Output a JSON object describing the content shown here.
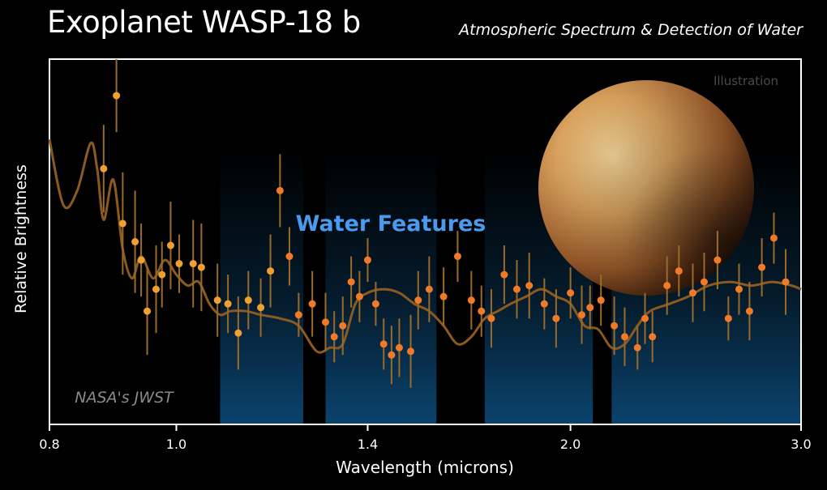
{
  "title": "Exoplanet WASP-18 b",
  "subtitle": "Atmospheric Spectrum & Detection of Water",
  "annotations": {
    "water": "Water Features",
    "illustration": "Illustration",
    "credit": "NASA's JWST"
  },
  "colors": {
    "points": "#f07a28",
    "model": "#8a5a20",
    "water_band": "#0d4f80",
    "water_text": "#4a9bf0",
    "planet": "#c68a45"
  },
  "chart_data": {
    "type": "scatter",
    "title": "Exoplanet WASP-18 b",
    "subtitle": "Atmospheric Spectrum & Detection of Water",
    "xlabel": "Wavelength (microns)",
    "ylabel": "Relative Brightness",
    "x_scale": "log",
    "xlim": [
      0.8,
      3.0
    ],
    "ylim": [
      0,
      100
    ],
    "x_ticks": [
      0.8,
      1.0,
      1.4,
      2.0,
      3.0
    ],
    "x_tick_labels": [
      "0.8",
      "1.0",
      "1.4",
      "2.0",
      "3.0"
    ],
    "y_ticks_shown": false,
    "water_bands": [
      [
        1.08,
        1.25
      ],
      [
        1.3,
        1.58
      ],
      [
        1.72,
        2.08
      ],
      [
        2.15,
        3.0
      ]
    ],
    "series": [
      {
        "kind": "observations",
        "x": [
          0.88,
          0.9,
          0.91,
          0.93,
          0.94,
          0.95,
          0.965,
          0.975,
          0.99,
          1.005,
          1.03,
          1.045,
          1.075,
          1.095,
          1.115,
          1.135,
          1.16,
          1.18,
          1.2,
          1.22,
          1.24,
          1.27,
          1.3,
          1.32,
          1.34,
          1.36,
          1.38,
          1.4,
          1.42,
          1.44,
          1.46,
          1.48,
          1.51,
          1.53,
          1.56,
          1.6,
          1.64,
          1.68,
          1.71,
          1.74,
          1.78,
          1.82,
          1.86,
          1.91,
          1.95,
          2.0,
          2.04,
          2.07,
          2.11,
          2.16,
          2.2,
          2.25,
          2.28,
          2.31,
          2.37,
          2.42,
          2.48,
          2.53,
          2.59,
          2.64,
          2.69,
          2.74,
          2.8,
          2.86,
          2.92
        ],
        "y": [
          70,
          90,
          55,
          50,
          45,
          31,
          37,
          41,
          49,
          44,
          44,
          43,
          34,
          33,
          25,
          34,
          32,
          42,
          64,
          46,
          30,
          33,
          28,
          24,
          27,
          39,
          35,
          45,
          33,
          22,
          19,
          21,
          20,
          34,
          37,
          35,
          46,
          34,
          31,
          29,
          41,
          37,
          38,
          33,
          29,
          36,
          30,
          32,
          34,
          27,
          24,
          21,
          29,
          24,
          38,
          42,
          36,
          39,
          45,
          29,
          37,
          31,
          43,
          51,
          39
        ],
        "err": [
          12,
          10,
          14,
          14,
          10,
          12,
          12,
          9,
          12,
          8,
          12,
          12,
          10,
          8,
          10,
          8,
          8,
          10,
          10,
          8,
          6,
          9,
          8,
          7,
          8,
          7,
          7,
          6,
          6,
          7,
          8,
          8,
          10,
          8,
          9,
          8,
          7,
          8,
          7,
          8,
          8,
          8,
          9,
          7,
          8,
          7,
          8,
          6,
          7,
          8,
          8,
          6,
          7,
          7,
          8,
          7,
          8,
          8,
          8,
          6,
          7,
          8,
          8,
          7,
          9
        ]
      },
      {
        "kind": "model",
        "x": [
          0.8,
          0.82,
          0.84,
          0.86,
          0.87,
          0.88,
          0.895,
          0.91,
          0.925,
          0.94,
          0.96,
          0.98,
          1.0,
          1.02,
          1.04,
          1.06,
          1.08,
          1.1,
          1.13,
          1.16,
          1.2,
          1.24,
          1.28,
          1.31,
          1.34,
          1.37,
          1.4,
          1.44,
          1.48,
          1.52,
          1.56,
          1.6,
          1.64,
          1.68,
          1.72,
          1.76,
          1.8,
          1.85,
          1.9,
          1.95,
          2.0,
          2.05,
          2.1,
          2.15,
          2.2,
          2.25,
          2.3,
          2.38,
          2.46,
          2.55,
          2.65,
          2.75,
          2.85,
          2.95,
          3.0
        ],
        "y": [
          78,
          60,
          64,
          77,
          70,
          56,
          67,
          48,
          40,
          46,
          40,
          45,
          41,
          38,
          39,
          33,
          30,
          31,
          31,
          30,
          29,
          27,
          20,
          21,
          22,
          33,
          36,
          37,
          36,
          33,
          31,
          27,
          22,
          24,
          29,
          31,
          33,
          35,
          37,
          35,
          33,
          27,
          26,
          21,
          22,
          27,
          31,
          33,
          35,
          38,
          39,
          38,
          39,
          38,
          37
        ]
      }
    ]
  }
}
